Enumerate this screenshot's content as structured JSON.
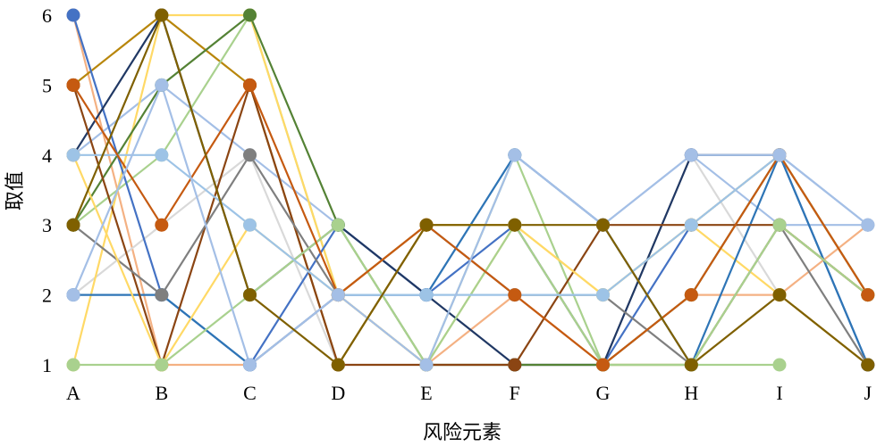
{
  "chart_data": {
    "type": "line",
    "title": "",
    "xlabel": "风险元素",
    "ylabel": "取值",
    "categories": [
      "A",
      "B",
      "C",
      "D",
      "E",
      "F",
      "G",
      "H",
      "I",
      "J"
    ],
    "y_ticks": [
      1,
      2,
      3,
      4,
      5,
      6
    ],
    "ylim": [
      1,
      6
    ],
    "grid": false,
    "legend": "none",
    "series": [
      {
        "color": "#F4B183",
        "values": [
          6,
          1,
          1,
          2,
          1,
          2,
          1,
          2,
          2,
          3
        ]
      },
      {
        "color": "#B8860B",
        "values": [
          5,
          6,
          5,
          1,
          3,
          3,
          1,
          1,
          3,
          2
        ]
      },
      {
        "color": "#A4BFE6",
        "values": [
          4,
          5,
          4,
          3,
          2,
          4,
          3,
          4,
          3,
          3
        ]
      },
      {
        "color": "#A9D18E",
        "values": [
          3,
          4,
          6,
          2,
          1,
          4,
          1,
          1,
          1,
          null
        ]
      },
      {
        "color": "#D9D9D9",
        "values": [
          2,
          3,
          4,
          1,
          1,
          1,
          1,
          4,
          2,
          1
        ]
      },
      {
        "color": "#FFD966",
        "values": [
          1,
          6,
          6,
          2,
          1,
          3,
          2,
          3,
          2,
          1
        ]
      },
      {
        "color": "#4472C4",
        "values": [
          6,
          2,
          1,
          3,
          2,
          3,
          1,
          3,
          4,
          1
        ]
      },
      {
        "color": "#203864",
        "values": [
          4,
          6,
          2,
          3,
          2,
          1,
          1,
          4,
          4,
          2
        ]
      },
      {
        "color": "#548235",
        "values": [
          3,
          5,
          6,
          3,
          1,
          1,
          1,
          2,
          4,
          2
        ]
      },
      {
        "color": "#2E75B6",
        "values": [
          2,
          2,
          1,
          2,
          2,
          4,
          3,
          1,
          4,
          1
        ]
      },
      {
        "color": "#8B4513",
        "values": [
          5,
          1,
          5,
          1,
          1,
          1,
          3,
          3,
          3,
          2
        ]
      },
      {
        "color": "#7F7F7F",
        "values": [
          3,
          2,
          4,
          2,
          3,
          2,
          2,
          1,
          3,
          1
        ]
      },
      {
        "color": "#FFD966",
        "values": [
          4,
          1,
          3,
          2,
          3,
          3,
          2,
          3,
          4,
          2
        ]
      },
      {
        "color": "#A9D18E",
        "values": [
          1,
          1,
          2,
          3,
          1,
          3,
          1,
          1,
          3,
          2
        ]
      },
      {
        "color": "#9DC3E6",
        "values": [
          4,
          4,
          3,
          2,
          2,
          2,
          2,
          3,
          4,
          3
        ]
      },
      {
        "color": "#C55A11",
        "values": [
          5,
          3,
          5,
          2,
          3,
          2,
          1,
          2,
          4,
          2
        ]
      },
      {
        "color": "#A4BFE6",
        "values": [
          2,
          5,
          1,
          2,
          1,
          4,
          3,
          4,
          4,
          3
        ]
      },
      {
        "color": "#7F6000",
        "values": [
          3,
          6,
          2,
          1,
          3,
          3,
          3,
          1,
          2,
          1
        ]
      }
    ]
  }
}
